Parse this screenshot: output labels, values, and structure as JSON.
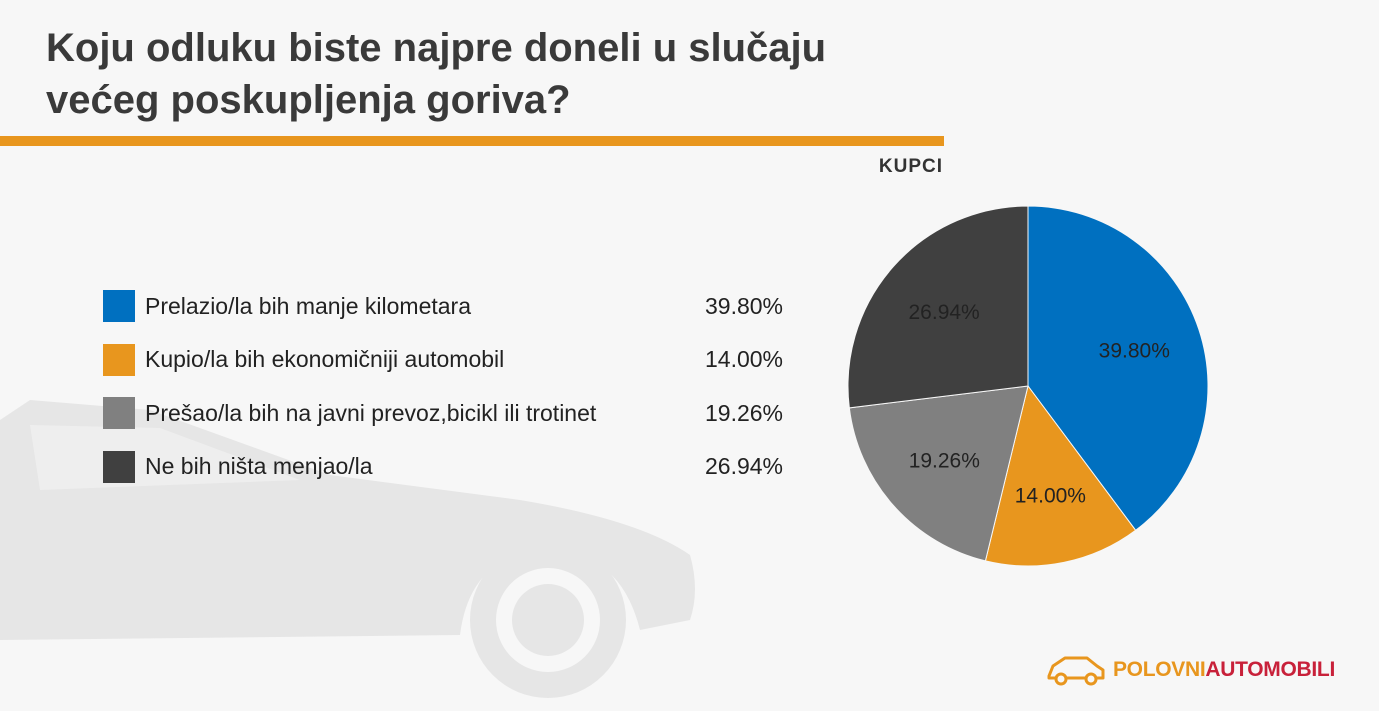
{
  "title": "Koju odluku biste najpre doneli u slučaju većeg poskupljenja goriva?",
  "subgroup": "KUPCI",
  "colors": {
    "accent": "#e8961e",
    "blue": "#0070c0",
    "orange": "#e8961e",
    "gray": "#808080",
    "dark": "#404040"
  },
  "chart_data": {
    "type": "pie",
    "title": "Koju odluku biste najpre doneli u slučaju većeg poskupljenja goriva?",
    "categories": [
      "Prelazio/la bih manje kilometara",
      "Kupio/la bih ekonomičniji automobil",
      "Prešao/la bih na javni prevoz,bicikl ili trotinet",
      "Ne bih ništa menjao/la"
    ],
    "values": [
      39.8,
      14.0,
      19.26,
      26.94
    ],
    "labels": [
      "39.80%",
      "14.00%",
      "19.26%",
      "26.94%"
    ],
    "colors": [
      "#0070c0",
      "#e8961e",
      "#808080",
      "#404040"
    ],
    "legend": "left"
  },
  "logo": {
    "part1": "POLOVNI",
    "part2": "AUTOMOBILI"
  }
}
